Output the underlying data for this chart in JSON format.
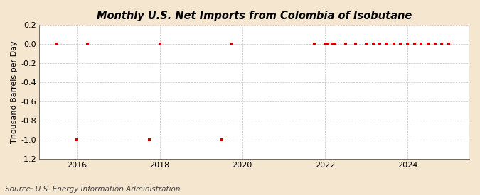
{
  "title": "Monthly U.S. Net Imports from Colombia of Isobutane",
  "ylabel": "Thousand Barrels per Day",
  "source": "Source: U.S. Energy Information Administration",
  "background_color": "#f5e6cf",
  "plot_background_color": "#ffffff",
  "ylim": [
    -1.2,
    0.2
  ],
  "yticks": [
    -1.2,
    -1.0,
    -0.8,
    -0.6,
    -0.4,
    -0.2,
    0.0,
    0.2
  ],
  "ytick_labels": [
    "-1.2",
    "-1.0",
    "-0.8",
    "-0.6",
    "-0.4",
    "-0.2",
    "0.0",
    "0.2"
  ],
  "xlim_start": 2015.08,
  "xlim_end": 2025.5,
  "xticks": [
    2016,
    2018,
    2020,
    2022,
    2024
  ],
  "marker_color": "#cc0000",
  "marker_style": "s",
  "marker_size": 3.5,
  "data_x": [
    2015.5,
    2016.0,
    2016.25,
    2017.75,
    2018.0,
    2019.5,
    2019.75,
    2021.75,
    2022.0,
    2022.08,
    2022.17,
    2022.25,
    2022.5,
    2022.75,
    2023.0,
    2023.17,
    2023.33,
    2023.5,
    2023.67,
    2023.83,
    2024.0,
    2024.17,
    2024.33,
    2024.5,
    2024.67,
    2024.83,
    2025.0
  ],
  "data_y": [
    0.0,
    -1.0,
    0.0,
    -1.0,
    0.0,
    -1.0,
    0.0,
    0.0,
    0.0,
    0.0,
    0.0,
    0.0,
    0.0,
    0.0,
    0.0,
    0.0,
    0.0,
    0.0,
    0.0,
    0.0,
    0.0,
    0.0,
    0.0,
    0.0,
    0.0,
    0.0,
    0.0
  ],
  "title_fontsize": 10.5,
  "axis_fontsize": 8,
  "source_fontsize": 7.5
}
